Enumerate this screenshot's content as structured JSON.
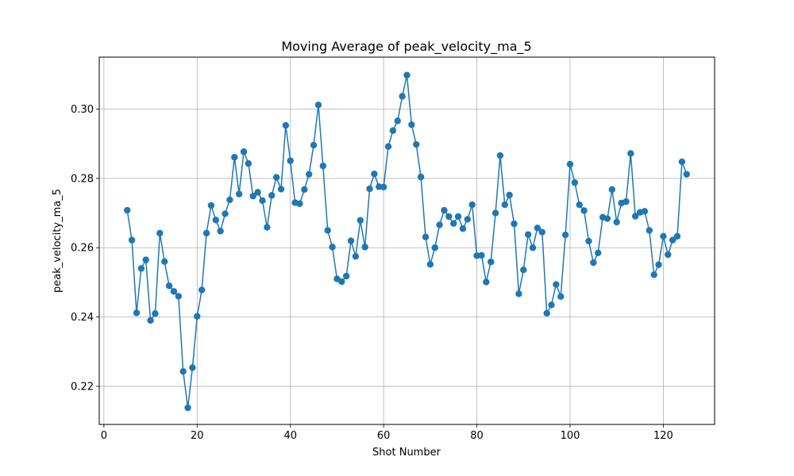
{
  "chart_data": {
    "type": "line",
    "title": "Moving Average of peak_velocity_ma_5",
    "xlabel": "Shot Number",
    "ylabel": "peak_velocity_ma_5",
    "xlim": [
      -1,
      131
    ],
    "ylim": [
      0.209,
      0.315
    ],
    "x_ticks": [
      0,
      20,
      40,
      60,
      80,
      100,
      120
    ],
    "y_ticks": [
      0.22,
      0.24,
      0.26,
      0.28,
      0.3
    ],
    "x_tick_labels": [
      "0",
      "20",
      "40",
      "60",
      "80",
      "100",
      "120"
    ],
    "y_tick_labels": [
      "0.22",
      "0.24",
      "0.26",
      "0.28",
      "0.30"
    ],
    "grid": true,
    "markers": "circle",
    "color": "#1f77b4",
    "series": [
      {
        "x": [
          5,
          6,
          7,
          8,
          9,
          10,
          11,
          12,
          13,
          14,
          15,
          16,
          17,
          18,
          19,
          20,
          21,
          22,
          23,
          24,
          25,
          26,
          27,
          28,
          29,
          30,
          31,
          32,
          33,
          34,
          35,
          36,
          37,
          38,
          39,
          40,
          41,
          42,
          43,
          44,
          45,
          46,
          47,
          48,
          49,
          50,
          51,
          52,
          53,
          54,
          55,
          56,
          57,
          58,
          59,
          60,
          61,
          62,
          63,
          64,
          65,
          66,
          67,
          68,
          69,
          70,
          71,
          72,
          73,
          74,
          75,
          76,
          77,
          78,
          79,
          80,
          81,
          82,
          83,
          84,
          85,
          86,
          87,
          88,
          89,
          90,
          91,
          92,
          93,
          94,
          95,
          96,
          97,
          98,
          99,
          100,
          101,
          102,
          103,
          104,
          105,
          106,
          107,
          108,
          109,
          110,
          111,
          112,
          113,
          114,
          115,
          116,
          117,
          118,
          119,
          120,
          121,
          122,
          123,
          124,
          125
        ],
        "values": [
          0.2708,
          0.2622,
          0.2412,
          0.254,
          0.2565,
          0.239,
          0.241,
          0.2642,
          0.256,
          0.249,
          0.2474,
          0.246,
          0.2243,
          0.2138,
          0.2254,
          0.2402,
          0.2478,
          0.2642,
          0.2722,
          0.268,
          0.2648,
          0.2698,
          0.2738,
          0.2861,
          0.2755,
          0.2877,
          0.2843,
          0.2749,
          0.276,
          0.2736,
          0.2659,
          0.2751,
          0.2803,
          0.2769,
          0.2953,
          0.2851,
          0.273,
          0.2727,
          0.2768,
          0.2812,
          0.2896,
          0.3012,
          0.2836,
          0.265,
          0.2602,
          0.251,
          0.2502,
          0.2518,
          0.262,
          0.2575,
          0.2679,
          0.2602,
          0.277,
          0.2813,
          0.2776,
          0.2775,
          0.2892,
          0.2938,
          0.2966,
          0.3037,
          0.3098,
          0.2955,
          0.2898,
          0.2804,
          0.2631,
          0.2552,
          0.26,
          0.2666,
          0.2708,
          0.269,
          0.267,
          0.269,
          0.2655,
          0.2682,
          0.2724,
          0.2577,
          0.2578,
          0.2501,
          0.2559,
          0.27,
          0.2866,
          0.2724,
          0.2752,
          0.2669,
          0.2467,
          0.2536,
          0.2638,
          0.26,
          0.2657,
          0.2645,
          0.2411,
          0.2435,
          0.2494,
          0.2459,
          0.2637,
          0.2841,
          0.2788,
          0.2724,
          0.2707,
          0.2619,
          0.2557,
          0.2585,
          0.2688,
          0.2684,
          0.2768,
          0.2674,
          0.2729,
          0.2733,
          0.2872,
          0.2691,
          0.2702,
          0.2705,
          0.265,
          0.2522,
          0.2551,
          0.2633,
          0.258,
          0.2622,
          0.2633,
          0.2848,
          0.2812
        ]
      }
    ]
  }
}
